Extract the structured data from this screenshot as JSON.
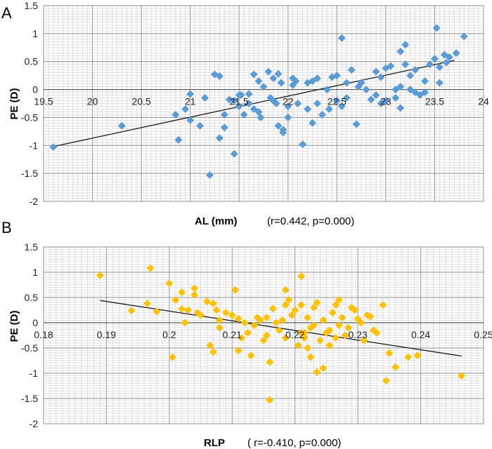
{
  "chart_data": [
    {
      "type": "scatter",
      "panel_label": "A",
      "xlabel": "AL (mm)",
      "ylabel": "PE (D)",
      "annotation": "(r=0.442, p=0.000)",
      "xlim": [
        19.5,
        24
      ],
      "ylim": [
        -2,
        1.5
      ],
      "x_ticks": [
        "19.5",
        "20",
        "20.5",
        "21",
        "21.5",
        "22",
        "22.5",
        "23",
        "23.5",
        "24"
      ],
      "y_ticks": [
        "1.5",
        "1",
        "0.5",
        "0",
        "-0.5",
        "-1",
        "-1.5",
        "-2"
      ],
      "marker_color": "#5b9bd5",
      "trendline": {
        "x": [
          19.6,
          23.7
        ],
        "y": [
          -1.02,
          0.52
        ]
      },
      "points": [
        [
          19.6,
          -1.03
        ],
        [
          20.3,
          -0.65
        ],
        [
          20.85,
          -0.45
        ],
        [
          20.88,
          -0.9
        ],
        [
          20.95,
          -0.35
        ],
        [
          21.0,
          -0.08
        ],
        [
          21.0,
          -0.55
        ],
        [
          21.1,
          -0.65
        ],
        [
          21.15,
          -0.15
        ],
        [
          21.2,
          -1.53
        ],
        [
          21.25,
          0.27
        ],
        [
          21.3,
          -0.87
        ],
        [
          21.3,
          0.24
        ],
        [
          21.35,
          -0.68
        ],
        [
          21.35,
          -0.45
        ],
        [
          21.4,
          -0.18
        ],
        [
          21.45,
          -1.15
        ],
        [
          21.45,
          -0.2
        ],
        [
          21.5,
          -0.3
        ],
        [
          21.52,
          -0.1
        ],
        [
          21.55,
          -0.45
        ],
        [
          21.6,
          -0.08
        ],
        [
          21.6,
          -0.25
        ],
        [
          21.65,
          0.27
        ],
        [
          21.65,
          -0.35
        ],
        [
          21.7,
          -0.4
        ],
        [
          21.7,
          0.15
        ],
        [
          21.72,
          -0.5
        ],
        [
          21.75,
          0.05
        ],
        [
          21.8,
          0.32
        ],
        [
          21.82,
          -0.15
        ],
        [
          21.85,
          -0.2
        ],
        [
          21.88,
          -0.25
        ],
        [
          21.9,
          -0.65
        ],
        [
          21.9,
          0.28
        ],
        [
          21.93,
          0.12
        ],
        [
          21.95,
          -0.72
        ],
        [
          21.95,
          -0.77
        ],
        [
          22.0,
          -0.5
        ],
        [
          22.0,
          -0.3
        ],
        [
          22.05,
          0.2
        ],
        [
          22.08,
          0.15
        ],
        [
          22.1,
          -0.25
        ],
        [
          22.15,
          -0.98
        ],
        [
          22.2,
          0.12
        ],
        [
          22.2,
          -0.35
        ],
        [
          22.25,
          -0.6
        ],
        [
          22.25,
          0.15
        ],
        [
          22.3,
          0.2
        ],
        [
          22.3,
          -0.25
        ],
        [
          22.35,
          -0.45
        ],
        [
          22.4,
          0.0
        ],
        [
          22.42,
          -0.35
        ],
        [
          22.45,
          0.22
        ],
        [
          22.5,
          0.25
        ],
        [
          22.5,
          -0.2
        ],
        [
          22.55,
          -0.3
        ],
        [
          22.55,
          0.92
        ],
        [
          22.6,
          0.12
        ],
        [
          22.65,
          0.35
        ],
        [
          22.7,
          -0.62
        ],
        [
          22.72,
          0.05
        ],
        [
          22.75,
          0.12
        ],
        [
          22.8,
          0.0
        ],
        [
          22.85,
          -0.18
        ],
        [
          22.9,
          -0.1
        ],
        [
          22.9,
          0.32
        ],
        [
          22.95,
          -0.25
        ],
        [
          22.95,
          0.22
        ],
        [
          23.0,
          0.38
        ],
        [
          23.0,
          -0.2
        ],
        [
          23.05,
          0.42
        ],
        [
          23.1,
          0.0
        ],
        [
          23.1,
          -0.15
        ],
        [
          23.15,
          0.68
        ],
        [
          23.15,
          -0.33
        ],
        [
          23.2,
          0.8
        ],
        [
          23.2,
          0.45
        ],
        [
          23.25,
          0.25
        ],
        [
          23.25,
          0.0
        ],
        [
          23.3,
          0.35
        ],
        [
          23.3,
          -0.05
        ],
        [
          23.35,
          -0.1
        ],
        [
          23.4,
          0.15
        ],
        [
          23.45,
          0.45
        ],
        [
          23.5,
          0.55
        ],
        [
          23.52,
          1.1
        ],
        [
          23.55,
          0.4
        ],
        [
          23.6,
          0.62
        ],
        [
          23.62,
          0.48
        ],
        [
          23.65,
          0.58
        ],
        [
          23.72,
          0.65
        ],
        [
          23.8,
          0.95
        ],
        [
          23.15,
          0.05
        ],
        [
          23.4,
          -0.05
        ],
        [
          23.55,
          0.12
        ],
        [
          22.6,
          -0.15
        ],
        [
          21.5,
          -0.1
        ],
        [
          21.85,
          0.2
        ],
        [
          22.05,
          0.08
        ]
      ]
    },
    {
      "type": "scatter",
      "panel_label": "B",
      "xlabel": "RLP",
      "ylabel": "PE (D)",
      "annotation": "( r=-0.410, p=0.000)",
      "xlim": [
        0.18,
        0.25
      ],
      "ylim": [
        -2,
        1.5
      ],
      "x_ticks": [
        "0.18",
        "0.19",
        "0.2",
        "0.21",
        "0.22",
        "0.23",
        "0.24",
        "0.25"
      ],
      "y_ticks": [
        "1.5",
        "1",
        "0.5",
        "0",
        "-0.5",
        "-1",
        "-1.5",
        "-2"
      ],
      "marker_color": "#ffc000",
      "trendline": {
        "x": [
          0.189,
          0.2465
        ],
        "y": [
          0.44,
          -0.66
        ]
      },
      "points": [
        [
          0.189,
          0.94
        ],
        [
          0.194,
          0.24
        ],
        [
          0.1965,
          0.38
        ],
        [
          0.197,
          1.08
        ],
        [
          0.198,
          0.22
        ],
        [
          0.2,
          0.78
        ],
        [
          0.2005,
          -0.68
        ],
        [
          0.201,
          0.45
        ],
        [
          0.202,
          0.27
        ],
        [
          0.202,
          0.6
        ],
        [
          0.2025,
          0.0
        ],
        [
          0.203,
          0.25
        ],
        [
          0.204,
          0.68
        ],
        [
          0.204,
          0.55
        ],
        [
          0.2045,
          0.2
        ],
        [
          0.205,
          0.15
        ],
        [
          0.206,
          0.42
        ],
        [
          0.2065,
          -0.45
        ],
        [
          0.207,
          -0.58
        ],
        [
          0.207,
          0.38
        ],
        [
          0.2075,
          0.25
        ],
        [
          0.208,
          -0.1
        ],
        [
          0.208,
          0.05
        ],
        [
          0.209,
          0.2
        ],
        [
          0.21,
          0.15
        ],
        [
          0.2105,
          0.65
        ],
        [
          0.211,
          0.08
        ],
        [
          0.211,
          -0.55
        ],
        [
          0.2115,
          -0.3
        ],
        [
          0.212,
          0.0
        ],
        [
          0.2125,
          -0.2
        ],
        [
          0.213,
          -0.65
        ],
        [
          0.2135,
          -0.05
        ],
        [
          0.214,
          0.1
        ],
        [
          0.2145,
          0.05
        ],
        [
          0.215,
          -0.35
        ],
        [
          0.2155,
          -0.25
        ],
        [
          0.216,
          -0.78
        ],
        [
          0.216,
          -1.53
        ],
        [
          0.2165,
          0.28
        ],
        [
          0.217,
          0.0
        ],
        [
          0.2175,
          -0.15
        ],
        [
          0.218,
          0.05
        ],
        [
          0.2185,
          -0.3
        ],
        [
          0.2185,
          0.65
        ],
        [
          0.219,
          0.45
        ],
        [
          0.2195,
          0.15
        ],
        [
          0.22,
          0.25
        ],
        [
          0.2205,
          -0.45
        ],
        [
          0.221,
          0.92
        ],
        [
          0.221,
          0.35
        ],
        [
          0.2215,
          -0.2
        ],
        [
          0.222,
          -0.5
        ],
        [
          0.222,
          0.1
        ],
        [
          0.2225,
          -0.1
        ],
        [
          0.223,
          0.3
        ],
        [
          0.223,
          -0.05
        ],
        [
          0.2235,
          0.4
        ],
        [
          0.224,
          -0.35
        ],
        [
          0.2245,
          -0.9
        ],
        [
          0.225,
          -0.2
        ],
        [
          0.2255,
          -0.15
        ],
        [
          0.226,
          0.2
        ],
        [
          0.2265,
          -0.3
        ],
        [
          0.227,
          0.45
        ],
        [
          0.227,
          -0.05
        ],
        [
          0.2275,
          0.1
        ],
        [
          0.228,
          -0.25
        ],
        [
          0.2285,
          -0.1
        ],
        [
          0.229,
          0.3
        ],
        [
          0.2295,
          0.25
        ],
        [
          0.23,
          0.08
        ],
        [
          0.2305,
          0.0
        ],
        [
          0.231,
          -0.35
        ],
        [
          0.2315,
          0.15
        ],
        [
          0.232,
          0.12
        ],
        [
          0.2325,
          -0.15
        ],
        [
          0.233,
          -0.2
        ],
        [
          0.234,
          0.35
        ],
        [
          0.2345,
          -1.15
        ],
        [
          0.235,
          -0.6
        ],
        [
          0.236,
          -0.88
        ],
        [
          0.238,
          -0.68
        ],
        [
          0.2395,
          -0.65
        ],
        [
          0.2465,
          -1.05
        ],
        [
          0.2215,
          -0.3
        ],
        [
          0.2235,
          -0.98
        ],
        [
          0.2225,
          -0.68
        ],
        [
          0.221,
          -0.2
        ],
        [
          0.2245,
          0.05
        ],
        [
          0.2255,
          -0.45
        ],
        [
          0.2265,
          0.35
        ],
        [
          0.2185,
          0.35
        ],
        [
          0.2155,
          0.1
        ]
      ]
    }
  ]
}
